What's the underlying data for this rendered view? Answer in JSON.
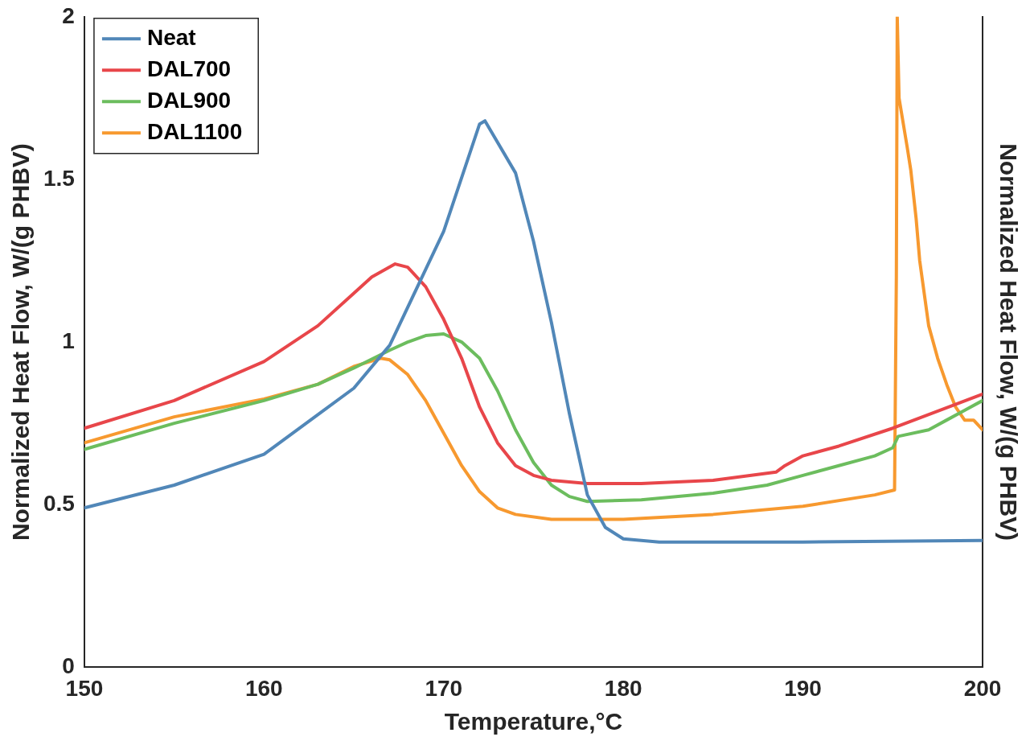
{
  "chart_data": {
    "type": "line",
    "xlabel": "Temperature,°C",
    "ylabel": "Normalized Heat Flow, W/(g PHBV)",
    "y2label": "Normalized Heat Flow, W/(g PHBV)",
    "xlim": [
      150,
      200
    ],
    "xticks": [
      150,
      160,
      170,
      180,
      190,
      200
    ],
    "ylim": [
      0,
      2
    ],
    "yticks": [
      0,
      0.5,
      1,
      1.5,
      2
    ],
    "legend": "top left",
    "grid": false,
    "marker": "none",
    "line_style": "solid",
    "series": [
      {
        "name": "Neat",
        "color": "#5187b8",
        "x": [
          150,
          155,
          160,
          165,
          167,
          170,
          172,
          172.3,
          174,
          175,
          176,
          177,
          178,
          179,
          180,
          182,
          190,
          200
        ],
        "values": [
          0.49,
          0.56,
          0.655,
          0.858,
          0.99,
          1.34,
          1.67,
          1.68,
          1.52,
          1.31,
          1.06,
          0.78,
          0.53,
          0.43,
          0.395,
          0.385,
          0.385,
          0.39
        ]
      },
      {
        "name": "DAL700",
        "color": "#e8464a",
        "x": [
          150,
          155,
          160,
          163,
          165,
          166,
          167.3,
          168,
          169,
          170,
          171,
          172,
          173,
          174,
          175,
          176,
          178,
          181,
          185,
          188.5,
          189,
          190,
          192,
          195,
          200
        ],
        "values": [
          0.735,
          0.82,
          0.94,
          1.05,
          1.15,
          1.2,
          1.24,
          1.23,
          1.17,
          1.07,
          0.95,
          0.8,
          0.69,
          0.62,
          0.59,
          0.575,
          0.565,
          0.565,
          0.575,
          0.6,
          0.62,
          0.65,
          0.68,
          0.735,
          0.84
        ]
      },
      {
        "name": "DAL900",
        "color": "#6cbd5e",
        "x": [
          150,
          155,
          160,
          163,
          165,
          167,
          168,
          169,
          170,
          171,
          172,
          173,
          174,
          175,
          176,
          177,
          178,
          181,
          185,
          188,
          190,
          192,
          194,
          195,
          195.3,
          197,
          198,
          199,
          200
        ],
        "values": [
          0.67,
          0.75,
          0.82,
          0.87,
          0.92,
          0.975,
          1,
          1.02,
          1.025,
          1,
          0.95,
          0.85,
          0.73,
          0.63,
          0.56,
          0.525,
          0.51,
          0.515,
          0.535,
          0.56,
          0.59,
          0.62,
          0.65,
          0.675,
          0.71,
          0.73,
          0.76,
          0.79,
          0.82
        ]
      },
      {
        "name": "DAL1100",
        "color": "#f7992f",
        "x": [
          150,
          155,
          160,
          163,
          165,
          166.5,
          167,
          168,
          169,
          170,
          171,
          172,
          173,
          174,
          176,
          180,
          185,
          190,
          194,
          195.1,
          195.2,
          195.25,
          195.35,
          195.8,
          196,
          196.3,
          196.5,
          197,
          197.5,
          198,
          198.5,
          199,
          199.5,
          200
        ],
        "values": [
          0.69,
          0.77,
          0.825,
          0.87,
          0.925,
          0.95,
          0.945,
          0.9,
          0.82,
          0.72,
          0.62,
          0.54,
          0.49,
          0.47,
          0.455,
          0.455,
          0.47,
          0.495,
          0.53,
          0.545,
          1.2,
          2,
          1.75,
          1.6,
          1.53,
          1.38,
          1.25,
          1.05,
          0.95,
          0.87,
          0.8,
          0.76,
          0.76,
          0.73
        ]
      }
    ]
  }
}
